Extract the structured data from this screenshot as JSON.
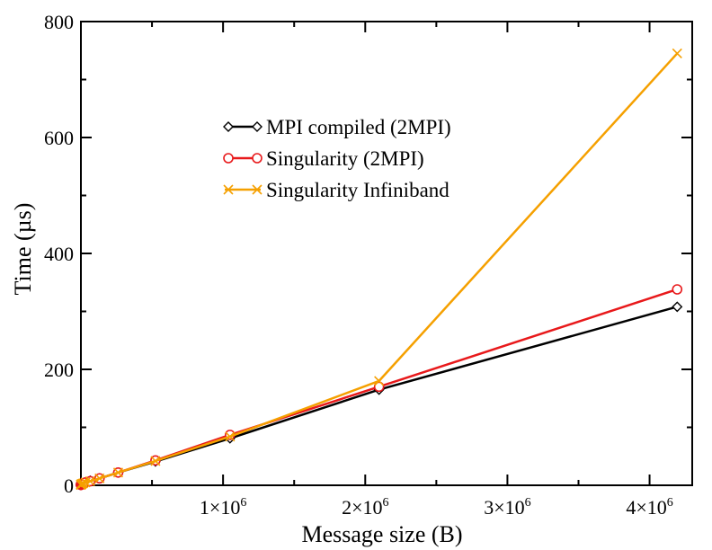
{
  "chart_data": {
    "type": "line",
    "title": "",
    "xlabel": "Message size (B)",
    "ylabel": "Time (µs)",
    "xlim": [
      0,
      4300000
    ],
    "ylim": [
      0,
      800
    ],
    "grid": false,
    "legend_position": "upper-center",
    "x_ticks": [
      {
        "value": 1000000,
        "mantissa": "1×10",
        "exp": "6"
      },
      {
        "value": 2000000,
        "mantissa": "2×10",
        "exp": "6"
      },
      {
        "value": 3000000,
        "mantissa": "3×10",
        "exp": "6"
      },
      {
        "value": 4000000,
        "mantissa": "4×10",
        "exp": "6"
      }
    ],
    "y_ticks": [
      {
        "value": 0,
        "label": "0"
      },
      {
        "value": 200,
        "label": "200"
      },
      {
        "value": 400,
        "label": "400"
      },
      {
        "value": 600,
        "label": "600"
      },
      {
        "value": 800,
        "label": "800"
      }
    ],
    "series": [
      {
        "name": "MPI compiled (2MPI)",
        "color": "#000000",
        "marker": "diamond",
        "x": [
          1,
          2,
          4,
          8,
          16,
          32,
          64,
          128,
          256,
          512,
          1024,
          2048,
          4096,
          8192,
          16384,
          32768,
          65536,
          131072,
          262144,
          524288,
          1048576,
          2097152,
          4194304
        ],
        "y": [
          1,
          1,
          1,
          1,
          1,
          1,
          1,
          1,
          1,
          1.2,
          1.4,
          1.7,
          2,
          2.5,
          3.5,
          5,
          8,
          12,
          22,
          41,
          81,
          165,
          308
        ]
      },
      {
        "name": "Singularity (2MPI)",
        "color": "#e8191b",
        "marker": "circle",
        "x": [
          1,
          2,
          4,
          8,
          16,
          32,
          64,
          128,
          256,
          512,
          1024,
          2048,
          4096,
          8192,
          16384,
          32768,
          65536,
          131072,
          262144,
          524288,
          1048576,
          2097152,
          4194304
        ],
        "y": [
          1,
          1,
          1,
          1,
          1,
          1,
          1,
          1,
          1,
          1.2,
          1.4,
          1.7,
          2,
          2.6,
          3.6,
          5,
          7,
          12,
          22,
          43,
          87,
          170,
          338
        ]
      },
      {
        "name": "Singularity Infiniband",
        "color": "#f5a000",
        "marker": "x",
        "x": [
          1,
          2,
          4,
          8,
          16,
          32,
          64,
          128,
          256,
          512,
          1024,
          2048,
          4096,
          8192,
          16384,
          32768,
          65536,
          131072,
          262144,
          524288,
          1048576,
          2097152,
          4194304
        ],
        "y": [
          1,
          1,
          1,
          1,
          1,
          1,
          1,
          1,
          1,
          1.2,
          1.4,
          1.7,
          2,
          2.5,
          3.5,
          5,
          7,
          12,
          22,
          42,
          84,
          180,
          745
        ]
      }
    ]
  }
}
